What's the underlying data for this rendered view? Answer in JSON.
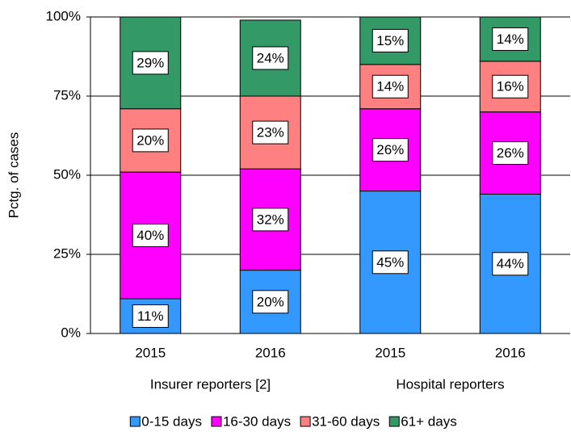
{
  "chart_data": {
    "type": "stacked_bar",
    "y_label": "Pctg. of cases",
    "categories": [
      "2015",
      "2016",
      "2015",
      "2016"
    ],
    "group_labels": [
      "Insurer reporters [2]",
      "Hospital reporters"
    ],
    "series": [
      {
        "name": "0-15 days",
        "color": "#3399ff",
        "values": [
          11,
          20,
          45,
          44
        ],
        "value_labels": [
          "11%",
          "20%",
          "45%",
          "44%"
        ]
      },
      {
        "name": "16-30 days",
        "color": "#ff00ff",
        "values": [
          40,
          32,
          26,
          26
        ],
        "value_labels": [
          "40%",
          "32%",
          "26%",
          "26%"
        ]
      },
      {
        "name": "31-60 days",
        "color": "#ff8080",
        "values": [
          20,
          23,
          14,
          16
        ],
        "value_labels": [
          "20%",
          "23%",
          "14%",
          "16%"
        ]
      },
      {
        "name": "61+ days",
        "color": "#339966",
        "values": [
          29,
          24,
          15,
          14
        ],
        "value_labels": [
          "29%",
          "24%",
          "15%",
          "14%"
        ]
      }
    ],
    "ylim": [
      0,
      100
    ],
    "yticks": [
      {
        "value": 0,
        "label": "0%"
      },
      {
        "value": 25,
        "label": "25%"
      },
      {
        "value": 50,
        "label": "50%"
      },
      {
        "value": 75,
        "label": "75%"
      },
      {
        "value": 100,
        "label": "100%"
      }
    ],
    "grid": true,
    "legend": "bottom"
  }
}
